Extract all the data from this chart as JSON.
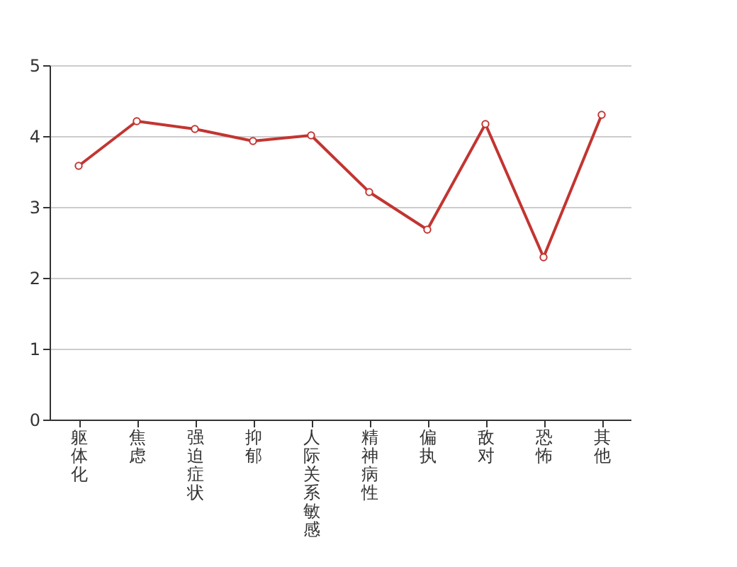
{
  "chart_data": {
    "type": "line",
    "categories": [
      "躯体化",
      "焦虑",
      "强迫症状",
      "抑郁",
      "人际关系敏感",
      "精神病性",
      "偏执",
      "敌对",
      "恐怖",
      "其他"
    ],
    "series": [
      {
        "color": "#c23531",
        "values": [
          3.58,
          4.21,
          4.1,
          3.93,
          4.01,
          3.21,
          2.68,
          4.17,
          2.29,
          4.3
        ]
      }
    ],
    "ylim": [
      0,
      5
    ],
    "yticks": [
      0,
      1,
      2,
      3,
      4,
      5
    ],
    "grid": "y",
    "marker": "circle",
    "line_style": "solid",
    "legend": false
  }
}
